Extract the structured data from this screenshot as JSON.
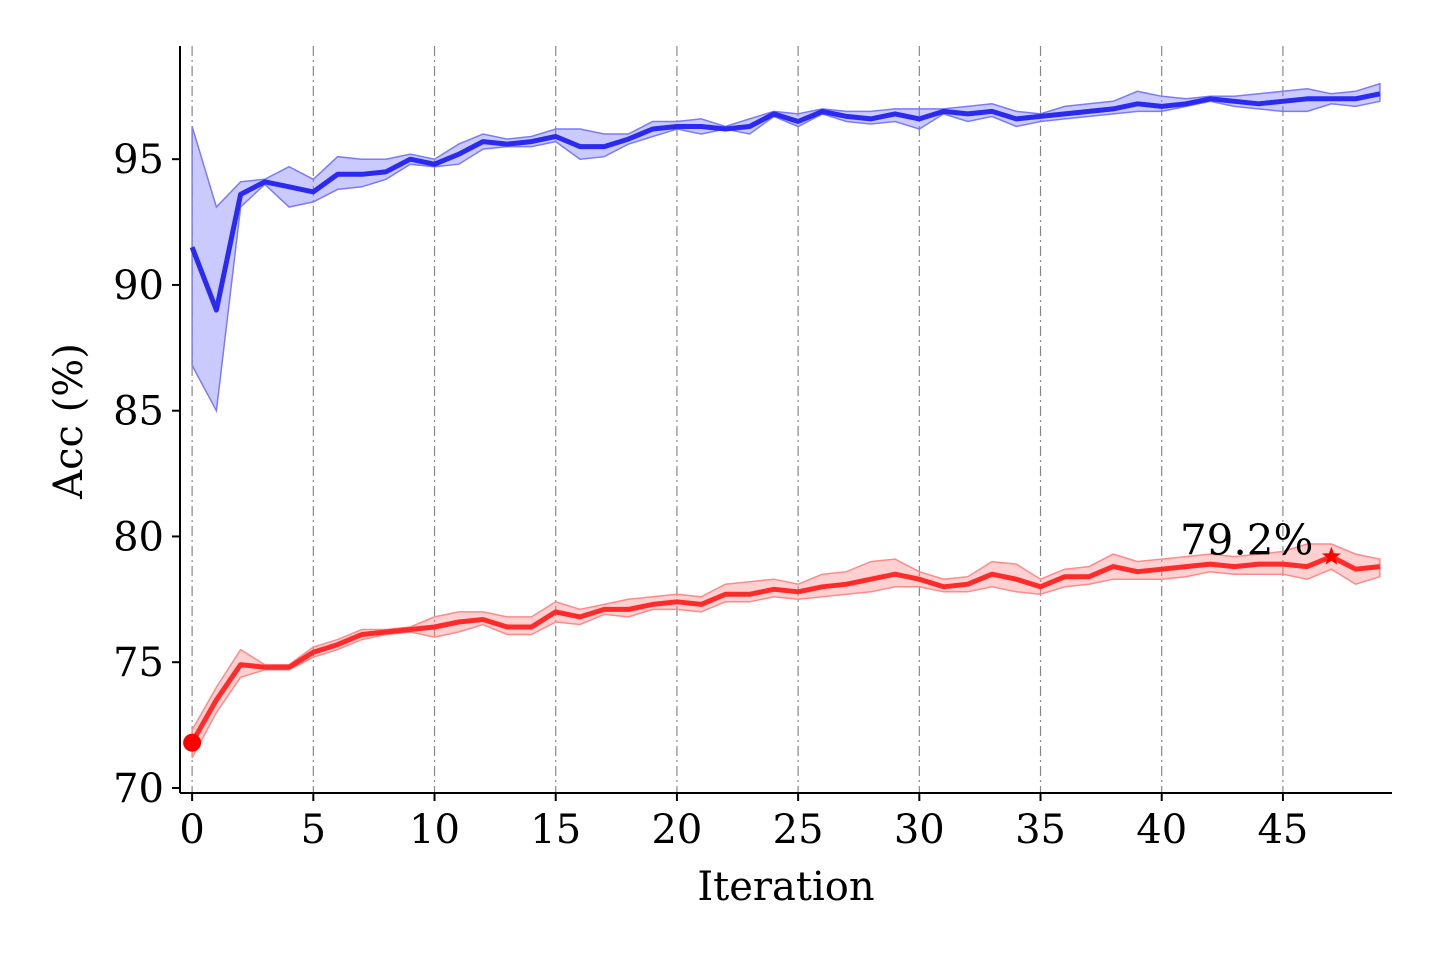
{
  "chart_data": {
    "type": "line",
    "xlabel": "Iteration",
    "ylabel": "Acc (%)",
    "xlim": [
      -0.5,
      49.5
    ],
    "ylim": [
      69.8,
      99.5
    ],
    "xticks": [
      0,
      5,
      10,
      15,
      20,
      25,
      30,
      35,
      40,
      45
    ],
    "yticks": [
      70,
      75,
      80,
      85,
      90,
      95
    ],
    "grid": "vertical dash-dot lines at x ticks",
    "x": [
      0,
      1,
      2,
      3,
      4,
      5,
      6,
      7,
      8,
      9,
      10,
      11,
      12,
      13,
      14,
      15,
      16,
      17,
      18,
      19,
      20,
      21,
      22,
      23,
      24,
      25,
      26,
      27,
      28,
      29,
      30,
      31,
      32,
      33,
      34,
      35,
      36,
      37,
      38,
      39,
      40,
      41,
      42,
      43,
      44,
      45,
      46,
      47,
      48,
      49
    ],
    "series": [
      {
        "color": "#2a2af0",
        "band_color": "#7a7aff",
        "values": [
          91.5,
          89.0,
          93.6,
          94.1,
          93.9,
          93.7,
          94.4,
          94.4,
          94.5,
          95.0,
          94.8,
          95.2,
          95.7,
          95.6,
          95.7,
          95.9,
          95.5,
          95.5,
          95.8,
          96.2,
          96.3,
          96.3,
          96.2,
          96.3,
          96.8,
          96.5,
          96.9,
          96.7,
          96.6,
          96.8,
          96.6,
          96.9,
          96.8,
          96.9,
          96.6,
          96.7,
          96.8,
          96.9,
          97.0,
          97.2,
          97.1,
          97.2,
          97.4,
          97.3,
          97.2,
          97.3,
          97.4,
          97.4,
          97.4,
          97.6
        ],
        "lower": [
          86.8,
          85.0,
          93.1,
          94.0,
          93.1,
          93.3,
          93.8,
          93.9,
          94.2,
          94.8,
          94.7,
          94.8,
          95.4,
          95.5,
          95.5,
          95.7,
          95.0,
          95.1,
          95.6,
          95.9,
          96.2,
          96.0,
          96.2,
          96.0,
          96.7,
          96.3,
          96.8,
          96.5,
          96.4,
          96.5,
          96.2,
          96.8,
          96.5,
          96.7,
          96.3,
          96.5,
          96.6,
          96.7,
          96.8,
          96.9,
          96.9,
          97.1,
          97.3,
          97.1,
          97.0,
          96.9,
          96.9,
          97.2,
          97.1,
          97.3
        ],
        "upper": [
          96.3,
          93.1,
          94.1,
          94.2,
          94.7,
          94.2,
          95.1,
          95.0,
          95.0,
          95.2,
          95.0,
          95.6,
          96.0,
          95.8,
          95.9,
          96.2,
          96.2,
          96.0,
          96.0,
          96.5,
          96.5,
          96.6,
          96.3,
          96.6,
          96.9,
          96.8,
          97.0,
          96.9,
          96.9,
          97.0,
          97.0,
          97.0,
          97.1,
          97.2,
          96.9,
          96.8,
          97.1,
          97.2,
          97.3,
          97.7,
          97.5,
          97.4,
          97.5,
          97.5,
          97.6,
          97.7,
          97.8,
          97.6,
          97.7,
          98.0
        ]
      },
      {
        "color": "#ff2b2b",
        "band_color": "#ff8a8a",
        "values": [
          71.8,
          73.5,
          74.9,
          74.8,
          74.8,
          75.4,
          75.7,
          76.1,
          76.2,
          76.3,
          76.4,
          76.6,
          76.7,
          76.4,
          76.4,
          77.0,
          76.8,
          77.1,
          77.1,
          77.3,
          77.4,
          77.3,
          77.7,
          77.7,
          77.9,
          77.8,
          78.0,
          78.1,
          78.3,
          78.5,
          78.3,
          78.0,
          78.1,
          78.5,
          78.3,
          78.0,
          78.4,
          78.4,
          78.8,
          78.6,
          78.7,
          78.8,
          78.9,
          78.8,
          78.9,
          78.9,
          78.8,
          79.2,
          78.7,
          78.8
        ],
        "lower": [
          71.2,
          73.0,
          74.4,
          74.7,
          74.7,
          75.2,
          75.5,
          75.9,
          76.1,
          76.2,
          76.0,
          76.2,
          76.5,
          76.1,
          76.1,
          76.6,
          76.5,
          76.9,
          76.8,
          77.1,
          77.1,
          77.0,
          77.4,
          77.4,
          77.6,
          77.5,
          77.6,
          77.7,
          77.8,
          78.0,
          78.0,
          77.8,
          77.8,
          78.0,
          77.8,
          77.7,
          78.0,
          78.1,
          78.3,
          78.3,
          78.3,
          78.4,
          78.6,
          78.5,
          78.5,
          78.5,
          78.3,
          78.7,
          78.1,
          78.4
        ],
        "upper": [
          72.3,
          74.0,
          75.5,
          74.9,
          74.9,
          75.6,
          75.9,
          76.3,
          76.3,
          76.4,
          76.8,
          77.0,
          77.0,
          76.8,
          76.8,
          77.4,
          77.1,
          77.3,
          77.5,
          77.6,
          77.7,
          77.6,
          78.1,
          78.2,
          78.3,
          78.1,
          78.5,
          78.6,
          79.0,
          79.1,
          78.6,
          78.3,
          78.4,
          79.0,
          78.9,
          78.3,
          78.7,
          78.8,
          79.3,
          79.0,
          79.1,
          79.2,
          79.3,
          79.2,
          79.3,
          79.4,
          79.7,
          79.7,
          79.3,
          79.1
        ]
      }
    ],
    "start_marker": {
      "x": 0,
      "y": 71.8,
      "color": "#ff0000"
    },
    "best_marker": {
      "x": 47,
      "y": 79.2,
      "color": "#ff0000"
    },
    "annotation": "79.2%"
  }
}
